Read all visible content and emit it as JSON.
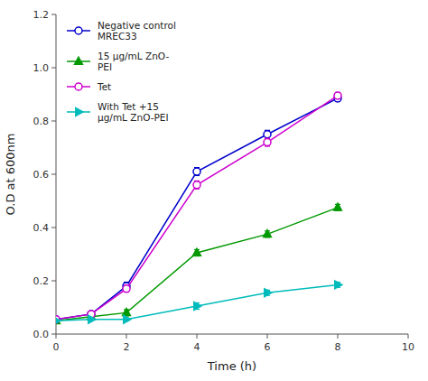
{
  "chart_data": {
    "type": "line",
    "xlabel": "Time (h)",
    "ylabel": "O.D at 600nm",
    "x": [
      0,
      1,
      2,
      4,
      6,
      8
    ],
    "xlim": [
      0,
      10
    ],
    "ylim": [
      0,
      1.2
    ],
    "xticks": [
      0,
      2,
      4,
      6,
      8,
      10
    ],
    "yticks": [
      {
        "value": 0,
        "label": "0.0"
      },
      0.2,
      0.4,
      0.6,
      0.8,
      {
        "value": 1.0,
        "label": "1.0"
      },
      1.2
    ],
    "grid": false,
    "legend": "upper-left",
    "series": [
      {
        "name": "Negative control\nMREC33",
        "color": "#0000cc",
        "marker": "open-circle",
        "values": [
          0.055,
          0.075,
          0.18,
          0.61,
          0.75,
          0.885
        ],
        "yerr": [
          0.005,
          0.005,
          0.015,
          0.015,
          0.015,
          0.012
        ]
      },
      {
        "name": "15 μg/mL ZnO-\nPEI",
        "color": "#009900",
        "marker": "triangle-up",
        "values": [
          0.05,
          0.065,
          0.08,
          0.305,
          0.375,
          0.475
        ],
        "yerr": [
          0.004,
          0.004,
          0.012,
          0.012,
          0.012,
          0.012
        ]
      },
      {
        "name": "Tet",
        "color": "#cc00cc",
        "marker": "open-circle",
        "values": [
          0.055,
          0.075,
          0.17,
          0.56,
          0.72,
          0.895
        ],
        "yerr": [
          0.005,
          0.005,
          0.012,
          0.015,
          0.015,
          0.012
        ]
      },
      {
        "name": "With Tet +15\nμg/mL ZnO-PEI",
        "color": "#00bbbb",
        "marker": "triangle-right",
        "values": [
          0.05,
          0.055,
          0.055,
          0.105,
          0.155,
          0.185
        ],
        "yerr": [
          0.003,
          0.003,
          0.005,
          0.012,
          0.01,
          0.01
        ]
      }
    ]
  }
}
